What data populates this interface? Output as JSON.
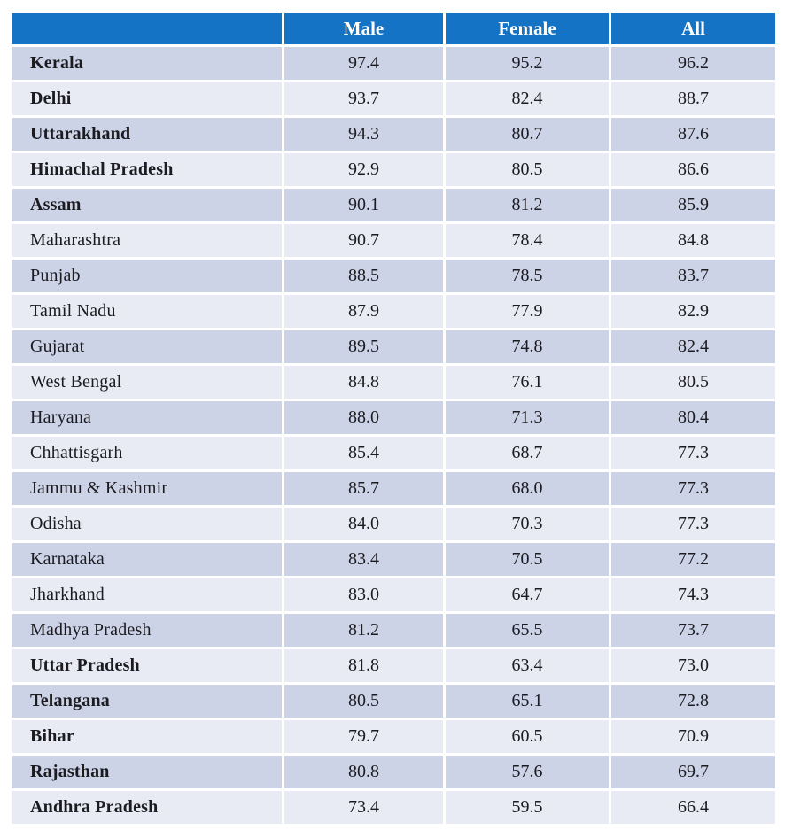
{
  "chart_data": {
    "type": "table",
    "columns": [
      "",
      "Male",
      "Female",
      "All"
    ],
    "rows": [
      {
        "state": "Kerala",
        "bold": true,
        "male": "97.4",
        "female": "95.2",
        "all": "96.2"
      },
      {
        "state": "Delhi",
        "bold": true,
        "male": "93.7",
        "female": "82.4",
        "all": "88.7"
      },
      {
        "state": "Uttarakhand",
        "bold": true,
        "male": "94.3",
        "female": "80.7",
        "all": "87.6"
      },
      {
        "state": "Himachal Pradesh",
        "bold": true,
        "male": "92.9",
        "female": "80.5",
        "all": "86.6"
      },
      {
        "state": "Assam",
        "bold": true,
        "male": "90.1",
        "female": "81.2",
        "all": "85.9"
      },
      {
        "state": "Maharashtra",
        "bold": false,
        "male": "90.7",
        "female": "78.4",
        "all": "84.8"
      },
      {
        "state": "Punjab",
        "bold": false,
        "male": "88.5",
        "female": "78.5",
        "all": "83.7"
      },
      {
        "state": "Tamil Nadu",
        "bold": false,
        "male": "87.9",
        "female": "77.9",
        "all": "82.9"
      },
      {
        "state": "Gujarat",
        "bold": false,
        "male": "89.5",
        "female": "74.8",
        "all": "82.4"
      },
      {
        "state": "West Bengal",
        "bold": false,
        "male": "84.8",
        "female": "76.1",
        "all": "80.5"
      },
      {
        "state": "Haryana",
        "bold": false,
        "male": "88.0",
        "female": "71.3",
        "all": "80.4"
      },
      {
        "state": "Chhattisgarh",
        "bold": false,
        "male": "85.4",
        "female": "68.7",
        "all": "77.3"
      },
      {
        "state": "Jammu & Kashmir",
        "bold": false,
        "male": "85.7",
        "female": "68.0",
        "all": "77.3"
      },
      {
        "state": "Odisha",
        "bold": false,
        "male": "84.0",
        "female": "70.3",
        "all": "77.3"
      },
      {
        "state": "Karnataka",
        "bold": false,
        "male": "83.4",
        "female": "70.5",
        "all": "77.2"
      },
      {
        "state": "Jharkhand",
        "bold": false,
        "male": "83.0",
        "female": "64.7",
        "all": "74.3"
      },
      {
        "state": "Madhya Pradesh",
        "bold": false,
        "male": "81.2",
        "female": "65.5",
        "all": "73.7"
      },
      {
        "state": "Uttar Pradesh",
        "bold": true,
        "male": "81.8",
        "female": "63.4",
        "all": "73.0"
      },
      {
        "state": "Telangana",
        "bold": true,
        "male": "80.5",
        "female": "65.1",
        "all": "72.8"
      },
      {
        "state": "Bihar",
        "bold": true,
        "male": "79.7",
        "female": "60.5",
        "all": "70.9"
      },
      {
        "state": "Rajasthan",
        "bold": true,
        "male": "80.8",
        "female": "57.6",
        "all": "69.7"
      },
      {
        "state": "Andhra Pradesh",
        "bold": true,
        "male": "73.4",
        "female": "59.5",
        "all": "66.4"
      }
    ]
  },
  "colors": {
    "header_bg": "#1473c4",
    "header_text": "#ffffff",
    "row_odd": "#ccd3e7",
    "row_even": "#e8eaf4",
    "body_text": "#1b1b20",
    "page_bg": "#ffffff"
  }
}
